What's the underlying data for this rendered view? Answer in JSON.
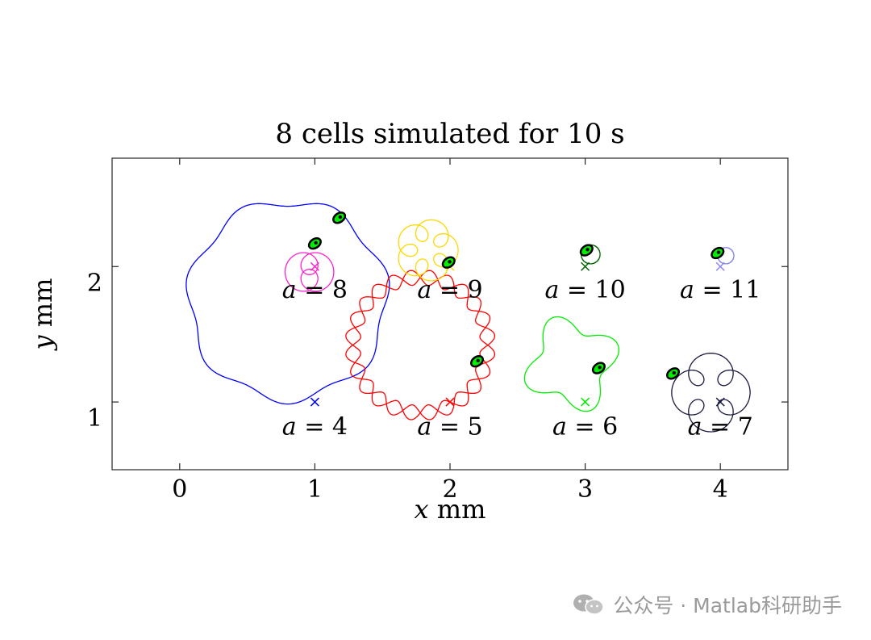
{
  "chart_data": {
    "type": "line",
    "title": "8 cells simulated for 10 s",
    "xlabel": "x mm",
    "ylabel": "y mm",
    "xlim": [
      -0.5,
      4.5
    ],
    "ylim": [
      0.5,
      2.8
    ],
    "xticks": [
      0,
      1,
      2,
      3,
      4
    ],
    "xtick_labels": [
      "0",
      "1",
      "2",
      "3",
      "4"
    ],
    "yticks": [
      1,
      2
    ],
    "ytick_labels": [
      "1",
      "2"
    ],
    "grid": false,
    "series": [
      {
        "name": "a = 4",
        "a": 4,
        "color": "#0000ff",
        "start": [
          1,
          1
        ],
        "center": [
          0.8,
          1.75
        ],
        "radius": 0.73,
        "lobes": 7,
        "wobble": 0.035,
        "petal": 0,
        "cell": [
          1.18,
          2.36
        ],
        "label_pos": [
          1,
          0.82
        ]
      },
      {
        "name": "a = 5",
        "a": 5,
        "color": "#ff0000",
        "start": [
          2,
          1
        ],
        "center": [
          1.78,
          1.42
        ],
        "radius": 0.5,
        "lobes": 12,
        "wobble": 0.055,
        "petal": 0,
        "double": true,
        "cell": [
          2.2,
          1.3
        ],
        "label_pos": [
          2,
          0.82
        ]
      },
      {
        "name": "a = 6",
        "a": 6,
        "color": "#00ee00",
        "start": [
          3,
          1
        ],
        "center": [
          2.9,
          1.28
        ],
        "radius": 0.3,
        "lobes": 4,
        "wobble": 0.07,
        "petal": 0,
        "cell": [
          3.1,
          1.25
        ],
        "label_pos": [
          3,
          0.82
        ]
      },
      {
        "name": "a = 7",
        "a": 7,
        "color": "#1a1a40",
        "start": [
          4,
          1
        ],
        "center": [
          3.93,
          1.07
        ],
        "radius": 0.19,
        "lobes": 5,
        "wobble": 0,
        "petal": 0.1,
        "cell": [
          3.65,
          1.21
        ],
        "label_pos": [
          4,
          0.82
        ]
      },
      {
        "name": "a = 8",
        "a": 8,
        "color": "#ff22cc",
        "start": [
          1,
          2
        ],
        "center": [
          0.96,
          1.96
        ],
        "radius": 0.08,
        "lobes": 3,
        "wobble": 0,
        "petal": 0.1,
        "cell": [
          1,
          2.17
        ],
        "label_pos": [
          1,
          1.83
        ]
      },
      {
        "name": "a = 9",
        "a": 9,
        "color": "#ffd700",
        "start": [
          2,
          2
        ],
        "center": [
          1.83,
          2.12
        ],
        "radius": 0.15,
        "lobes": 6,
        "wobble": 0,
        "petal": 0.08,
        "cell": [
          1.99,
          2.03
        ],
        "label_pos": [
          2,
          1.83
        ]
      },
      {
        "name": "a = 10",
        "a": 10,
        "color": "#006400",
        "start": [
          3,
          2
        ],
        "center": [
          3.04,
          2.09
        ],
        "radius": 0.07,
        "lobes": 1,
        "wobble": 0,
        "petal": 0,
        "cell": [
          3.01,
          2.12
        ],
        "label_pos": [
          3,
          1.83
        ]
      },
      {
        "name": "a = 11",
        "a": 11,
        "color": "#8888ee",
        "start": [
          4,
          2
        ],
        "center": [
          4.04,
          2.08
        ],
        "radius": 0.06,
        "lobes": 1,
        "wobble": 0,
        "petal": 0,
        "cell": [
          3.98,
          2.1
        ],
        "label_pos": [
          4,
          1.83
        ]
      }
    ]
  },
  "watermark": {
    "text": "公众号 · Matlab科研助手",
    "icon": "wechat-icon"
  }
}
